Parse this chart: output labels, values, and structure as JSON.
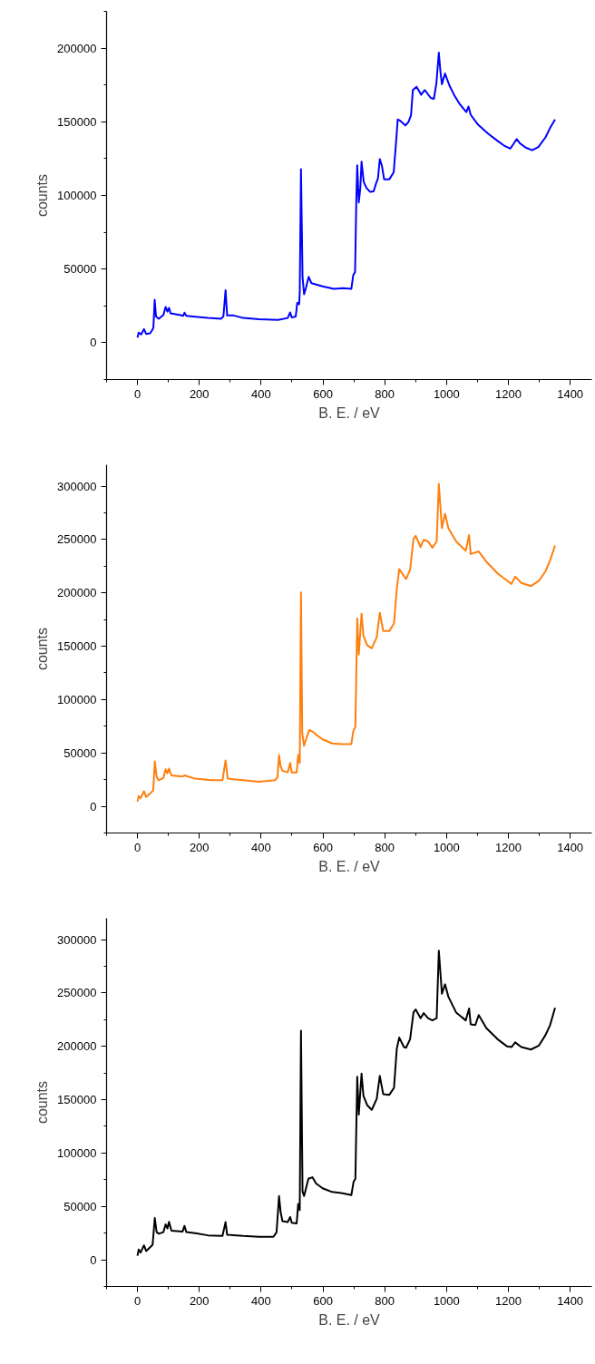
{
  "chart_data": [
    {
      "type": "line",
      "xlabel": "B. E. / eV",
      "ylabel": "counts",
      "xlim": [
        -100,
        1470
      ],
      "ylim": [
        -25000,
        225000
      ],
      "xticks": [
        {
          "value": -100,
          "label": null
        },
        0,
        {
          "value": 100,
          "label": null
        },
        200,
        {
          "value": 300,
          "label": null
        },
        400,
        {
          "value": 500,
          "label": null
        },
        600,
        {
          "value": 700,
          "label": null
        },
        800,
        {
          "value": 900,
          "label": null
        },
        1000,
        {
          "value": 1100,
          "label": null
        },
        1200,
        {
          "value": 1300,
          "label": null
        },
        1400
      ],
      "yticks": [
        {
          "value": -25000,
          "label": null
        },
        0,
        {
          "value": 25000,
          "label": null
        },
        50000,
        {
          "value": 75000,
          "label": null
        },
        100000,
        {
          "value": 125000,
          "label": null
        },
        150000,
        {
          "value": 175000,
          "label": null
        },
        200000,
        {
          "value": 225000,
          "label": null
        }
      ],
      "x": [
        0,
        4,
        12,
        21,
        28,
        41,
        49,
        51.5,
        55.6,
        60,
        69,
        84,
        91,
        97,
        102,
        107,
        136,
        148,
        152,
        158,
        187,
        228,
        270,
        278,
        285,
        290,
        311,
        342,
        393,
        455,
        486,
        494,
        499,
        512,
        517,
        523,
        525,
        529,
        534,
        539,
        545,
        554,
        563,
        599,
        635,
        666,
        692,
        698,
        704,
        708,
        711,
        716,
        721,
        725,
        732,
        741,
        753,
        764,
        772,
        778,
        784,
        791,
        798,
        815,
        829,
        837,
        842,
        851,
        867,
        877,
        885,
        891,
        903,
        918,
        929,
        949,
        959,
        967,
        975,
        980,
        985,
        995,
        1009,
        1024,
        1043,
        1064,
        1071,
        1078,
        1102,
        1135,
        1164,
        1185,
        1206,
        1217,
        1227,
        1237,
        1256,
        1277,
        1297,
        1320,
        1335,
        1351
      ],
      "series": [
        {
          "color": "#0000ff",
          "values": [
            3440,
            6880,
            5590,
            9250,
            6000,
            6450,
            9030,
            10300,
            29200,
            17850,
            16300,
            18900,
            24300,
            21100,
            23700,
            20000,
            18900,
            18300,
            20400,
            18300,
            17600,
            16800,
            16300,
            17800,
            35700,
            18500,
            18500,
            16800,
            15900,
            15500,
            16800,
            20600,
            17200,
            17800,
            27100,
            26200,
            34000,
            117800,
            44700,
            32900,
            37200,
            44700,
            40400,
            38300,
            36600,
            37000,
            36600,
            45800,
            48000,
            96300,
            120400,
            95300,
            105000,
            123000,
            109200,
            105000,
            102400,
            102800,
            108200,
            111400,
            124700,
            120000,
            111000,
            111000,
            115700,
            137200,
            151600,
            150500,
            147500,
            150000,
            154400,
            171600,
            173800,
            168400,
            171600,
            166200,
            165600,
            175900,
            197000,
            184500,
            175500,
            182800,
            174800,
            168400,
            161900,
            156600,
            160400,
            154800,
            148000,
            141900,
            137200,
            134000,
            131800,
            135100,
            138300,
            135500,
            132500,
            130700,
            132900,
            139400,
            145800,
            151600
          ]
        }
      ]
    },
    {
      "type": "line",
      "xlabel": "B. E. / eV",
      "ylabel": "counts",
      "xlim": [
        -100,
        1470
      ],
      "ylim": [
        -25000,
        320000
      ],
      "xticks": [
        {
          "value": -100,
          "label": null
        },
        0,
        {
          "value": 100,
          "label": null
        },
        200,
        {
          "value": 300,
          "label": null
        },
        400,
        {
          "value": 500,
          "label": null
        },
        600,
        {
          "value": 700,
          "label": null
        },
        800,
        {
          "value": 900,
          "label": null
        },
        1000,
        {
          "value": 1100,
          "label": null
        },
        1200,
        {
          "value": 1300,
          "label": null
        },
        1400
      ],
      "yticks": [
        {
          "value": -25000,
          "label": null
        },
        0,
        {
          "value": 25000,
          "label": null
        },
        50000,
        {
          "value": 75000,
          "label": null
        },
        100000,
        {
          "value": 125000,
          "label": null
        },
        150000,
        {
          "value": 175000,
          "label": null
        },
        200000,
        {
          "value": 225000,
          "label": null
        },
        250000,
        {
          "value": 275000,
          "label": null
        },
        300000
      ],
      "x": [
        0,
        4,
        10,
        21,
        28,
        43,
        51,
        56,
        62,
        69,
        84,
        91,
        97,
        102,
        110,
        146,
        152,
        187,
        239,
        275,
        285,
        292,
        342,
        393,
        445,
        453,
        458,
        463,
        469,
        486,
        494,
        499,
        515,
        520,
        525,
        529,
        533,
        539,
        547,
        556,
        566,
        578,
        599,
        630,
        660,
        692,
        698,
        705,
        711,
        716,
        725,
        731,
        743,
        758,
        774,
        784,
        795,
        815,
        830,
        839,
        847,
        862,
        869,
        882,
        893,
        900,
        916,
        926,
        940,
        954,
        968,
        975,
        985,
        995,
        1006,
        1031,
        1062,
        1073,
        1078,
        1104,
        1129,
        1165,
        1196,
        1210,
        1222,
        1242,
        1273,
        1299,
        1320,
        1335,
        1351
      ],
      "series": [
        {
          "color": "#ff7f0e",
          "values": [
            4400,
            9700,
            7650,
            14100,
            8800,
            12700,
            15000,
            42100,
            27400,
            24400,
            26800,
            34700,
            30900,
            35300,
            28900,
            28000,
            28900,
            25900,
            24400,
            24400,
            43000,
            25900,
            24400,
            23000,
            24400,
            27400,
            48000,
            37700,
            33300,
            31800,
            40600,
            31800,
            31800,
            48000,
            40600,
            200500,
            68600,
            56800,
            64200,
            71500,
            70100,
            67100,
            62700,
            58900,
            58300,
            58300,
            70100,
            74500,
            176000,
            142200,
            180500,
            159900,
            151000,
            148100,
            158400,
            181300,
            164300,
            164300,
            171600,
            204000,
            222300,
            215800,
            212900,
            221700,
            250500,
            253500,
            242900,
            249700,
            248200,
            242300,
            248200,
            302100,
            260600,
            274100,
            260600,
            248200,
            239400,
            254100,
            236400,
            238800,
            229100,
            218200,
            211400,
            208400,
            215200,
            209300,
            206400,
            211400,
            220200,
            230500,
            244400
          ]
        }
      ]
    },
    {
      "type": "line",
      "xlabel": "B. E. / eV",
      "ylabel": "counts",
      "xlim": [
        -100,
        1470
      ],
      "ylim": [
        -25000,
        320000
      ],
      "xticks": [
        {
          "value": -100,
          "label": null
        },
        0,
        {
          "value": 100,
          "label": null
        },
        200,
        {
          "value": 300,
          "label": null
        },
        400,
        {
          "value": 500,
          "label": null
        },
        600,
        {
          "value": 700,
          "label": null
        },
        800,
        {
          "value": 900,
          "label": null
        },
        1000,
        {
          "value": 1100,
          "label": null
        },
        1200,
        {
          "value": 1300,
          "label": null
        },
        1400
      ],
      "yticks": [
        {
          "value": -25000,
          "label": null
        },
        0,
        {
          "value": 25000,
          "label": null
        },
        50000,
        {
          "value": 75000,
          "label": null
        },
        100000,
        {
          "value": 125000,
          "label": null
        },
        150000,
        {
          "value": 175000,
          "label": null
        },
        200000,
        {
          "value": 225000,
          "label": null
        },
        250000,
        {
          "value": 275000,
          "label": null
        },
        300000
      ],
      "x": [
        0,
        4,
        10,
        21,
        28,
        41,
        49,
        56,
        62,
        69,
        84,
        91,
        97,
        102,
        110,
        146,
        152,
        158,
        187,
        228,
        275,
        285,
        290,
        342,
        393,
        440,
        450,
        458,
        463,
        469,
        486,
        494,
        499,
        515,
        520,
        525,
        529,
        534,
        539,
        553,
        566,
        578,
        599,
        630,
        660,
        692,
        699,
        705,
        711,
        716,
        725,
        731,
        743,
        758,
        774,
        784,
        795,
        815,
        830,
        839,
        847,
        862,
        869,
        882,
        893,
        900,
        916,
        926,
        940,
        954,
        968,
        975,
        985,
        995,
        1006,
        1031,
        1062,
        1073,
        1078,
        1093,
        1104,
        1129,
        1165,
        1196,
        1210,
        1222,
        1242,
        1273,
        1299,
        1320,
        1335,
        1351
      ],
      "series": [
        {
          "color": "#000000",
          "values": [
            3800,
            9700,
            6800,
            13500,
            8200,
            11800,
            14100,
            39100,
            25900,
            24400,
            25900,
            33200,
            29400,
            35600,
            27300,
            26500,
            31800,
            25900,
            25000,
            22900,
            22300,
            35300,
            23500,
            22300,
            21500,
            21500,
            25900,
            59700,
            45000,
            36200,
            35300,
            40000,
            34700,
            34100,
            52300,
            46500,
            214600,
            64100,
            59700,
            75900,
            77300,
            71400,
            67000,
            63500,
            62600,
            60600,
            72900,
            75900,
            171400,
            136100,
            174400,
            153800,
            145000,
            140500,
            150800,
            172300,
            155200,
            154600,
            161100,
            197900,
            208200,
            199300,
            198700,
            206700,
            231700,
            234600,
            226400,
            231100,
            226400,
            224300,
            226400,
            289600,
            249300,
            258100,
            246400,
            231700,
            224300,
            235500,
            220500,
            219900,
            229300,
            217000,
            206700,
            199900,
            199300,
            203700,
            199300,
            197000,
            200800,
            210500,
            219900,
            236100
          ]
        }
      ]
    }
  ]
}
